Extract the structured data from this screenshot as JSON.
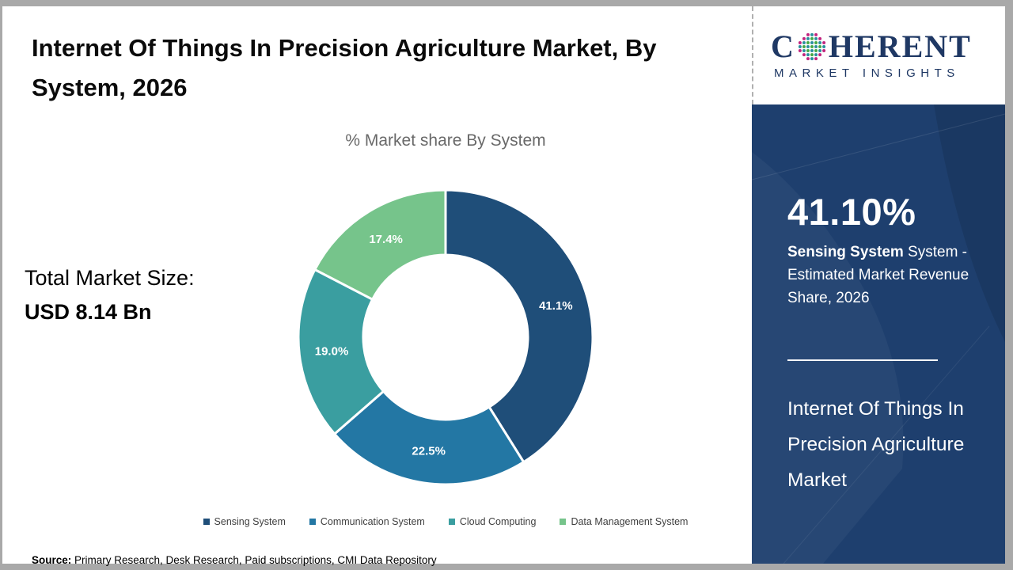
{
  "page": {
    "title": "Internet Of Things In Precision Agriculture Market, By System, 2026",
    "source_label": "Source:",
    "source_text": " Primary Research, Desk Research, Paid subscriptions, CMI Data Repository"
  },
  "total_market": {
    "label": "Total Market Size:",
    "value": "USD 8.14 Bn"
  },
  "chart_data": {
    "type": "pie",
    "subtype": "donut",
    "title": "% Market share By System",
    "categories": [
      "Sensing System",
      "Communication System",
      "Cloud Computing",
      "Data Management System"
    ],
    "values": [
      41.1,
      22.5,
      19.0,
      17.4
    ],
    "data_labels": [
      "41.1%",
      "22.5%",
      "19.0%",
      "17.4%"
    ],
    "colors": [
      "#1F4E79",
      "#2377A4",
      "#3A9EA0",
      "#76C48B"
    ],
    "start_angle_deg": 0,
    "direction": "clockwise",
    "outer_radius_px": 186,
    "inner_radius_px": 104,
    "label_radius_px": 145,
    "legend_position": "bottom"
  },
  "logo": {
    "brand_prefix": "C",
    "brand_suffix": "HERENT",
    "tagline": "MARKET INSIGHTS",
    "brand_color": "#1F3864",
    "globe_colors": [
      "#2a8f9d",
      "#46a846",
      "#c2257f"
    ]
  },
  "panel": {
    "background_color": "#1E3F6E",
    "stat_value": "41.10%",
    "stat_bold": "Sensing System",
    "stat_rest": " System - Estimated Market Revenue Share, 2026",
    "market_name": "Internet Of Things In Precision Agriculture Market"
  }
}
